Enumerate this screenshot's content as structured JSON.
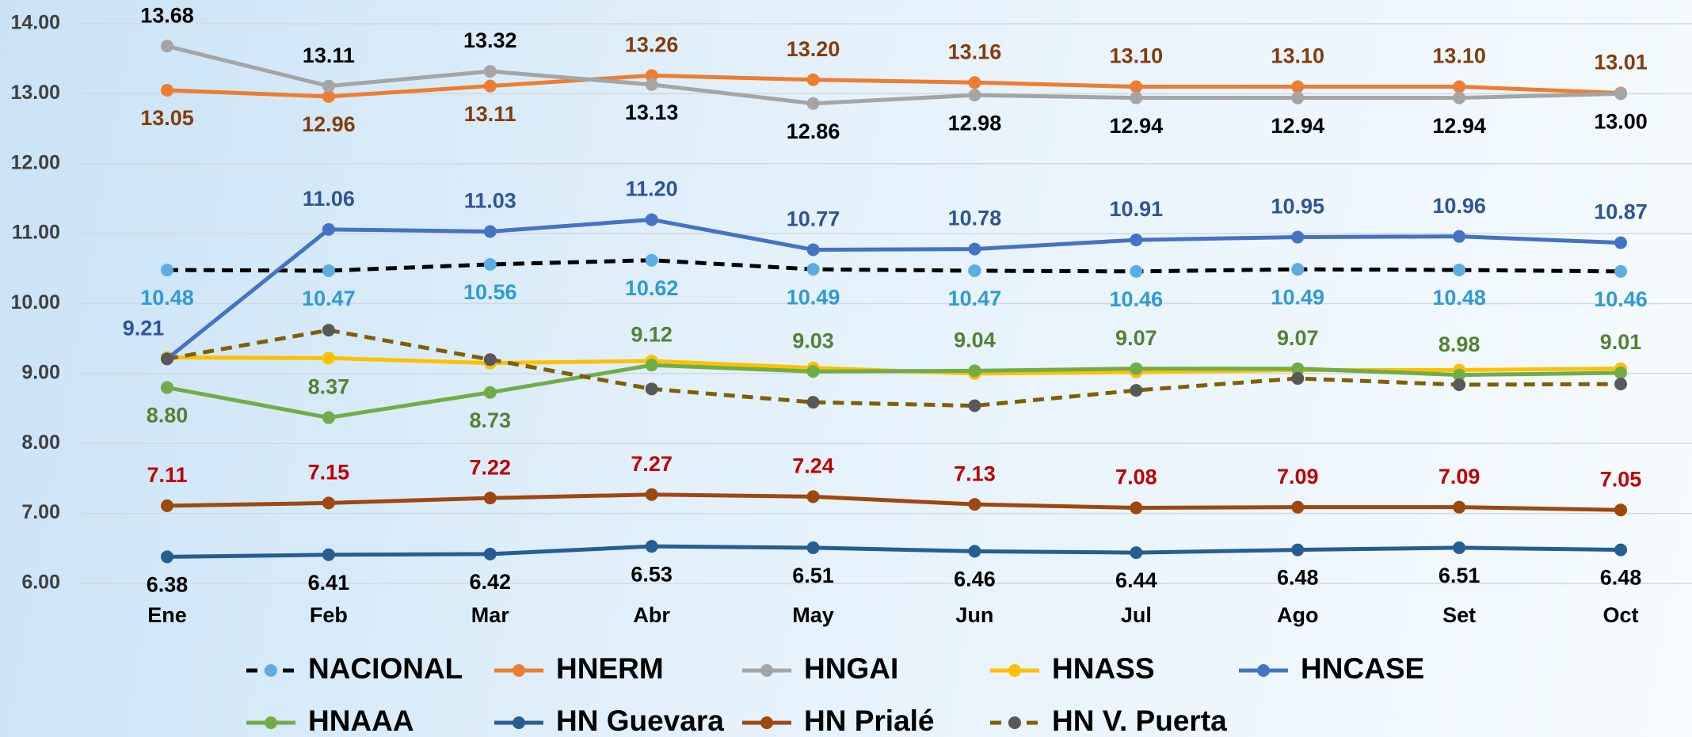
{
  "chart_data": {
    "type": "line",
    "categories": [
      "Ene",
      "Feb",
      "Mar",
      "Abr",
      "May",
      "Jun",
      "Jul",
      "Ago",
      "Set",
      "Oct"
    ],
    "ylim": [
      6,
      14
    ],
    "yticks": [
      {
        "value": 6,
        "label": "6.00"
      },
      {
        "value": 7,
        "label": "7.00"
      },
      {
        "value": 8,
        "label": "8.00"
      },
      {
        "value": 9,
        "label": "9.00"
      },
      {
        "value": 10,
        "label": "10.00"
      },
      {
        "value": 11,
        "label": "11.00"
      },
      {
        "value": 12,
        "label": "12.00"
      },
      {
        "value": 13,
        "label": "13.00"
      },
      {
        "value": 14,
        "label": "14.00"
      }
    ],
    "grid": true,
    "legend": "bottom",
    "series": [
      {
        "name": "NACIONAL",
        "color": "#000000",
        "marker_color": "#5aaee0",
        "label_color": "#2e9bd6",
        "dashed": true,
        "values": [
          10.48,
          10.47,
          10.56,
          10.62,
          10.49,
          10.47,
          10.46,
          10.49,
          10.48,
          10.46
        ],
        "value_labels": [
          "10.48",
          "10.47",
          "10.56",
          "10.62",
          "10.49",
          "10.47",
          "10.46",
          "10.49",
          "10.48",
          "10.46"
        ]
      },
      {
        "name": "HNERM",
        "color": "#ed7d31",
        "marker_color": "#ed7d31",
        "label_color": "#843c0c",
        "dashed": false,
        "values": [
          13.05,
          12.96,
          13.11,
          13.26,
          13.2,
          13.16,
          13.1,
          13.1,
          13.1,
          13.01
        ],
        "value_labels": [
          "13.05",
          "12.96",
          "13.11",
          "13.26",
          "13.20",
          "13.16",
          "13.10",
          "13.10",
          "13.10",
          "13.01"
        ]
      },
      {
        "name": "HNGAI",
        "color": "#a5a5a5",
        "marker_color": "#a5a5a5",
        "label_color": "#000000",
        "dashed": false,
        "values": [
          13.68,
          13.11,
          13.32,
          13.13,
          12.86,
          12.98,
          12.94,
          12.94,
          12.94,
          13.0
        ],
        "value_labels": [
          "13.68",
          "13.11",
          "13.32",
          "13.13",
          "12.86",
          "12.98",
          "12.94",
          "12.94",
          "12.94",
          "13.00"
        ]
      },
      {
        "name": "HNASS",
        "color": "#ffc000",
        "marker_color": "#ffc000",
        "dashed": false,
        "values": [
          9.23,
          9.22,
          9.15,
          9.18,
          9.08,
          9.0,
          9.02,
          9.05,
          9.05,
          9.07
        ]
      },
      {
        "name": "HNCASE",
        "color": "#4472c4",
        "marker_color": "#4472c4",
        "label_color": "#2f5597",
        "dashed": false,
        "values": [
          9.21,
          11.06,
          11.03,
          11.2,
          10.77,
          10.78,
          10.91,
          10.95,
          10.96,
          10.87
        ],
        "value_labels": [
          "9.21",
          "11.06",
          "11.03",
          "11.20",
          "10.77",
          "10.78",
          "10.91",
          "10.95",
          "10.96",
          "10.87"
        ]
      },
      {
        "name": "HNAAA",
        "color": "#70ad47",
        "marker_color": "#70ad47",
        "label_color": "#548235",
        "dashed": false,
        "values": [
          8.8,
          8.37,
          8.73,
          9.12,
          9.03,
          9.04,
          9.07,
          9.07,
          8.98,
          9.01
        ],
        "value_labels": [
          "8.80",
          "8.37",
          "8.73",
          "9.12",
          "9.03",
          "9.04",
          "9.07",
          "9.07",
          "8.98",
          "9.01"
        ]
      },
      {
        "name": "HN Guevara",
        "color": "#255e91",
        "marker_color": "#255e91",
        "label_color": "#000000",
        "dashed": false,
        "values": [
          6.38,
          6.41,
          6.42,
          6.53,
          6.51,
          6.46,
          6.44,
          6.48,
          6.51,
          6.48
        ],
        "value_labels": [
          "6.38",
          "6.41",
          "6.42",
          "6.53",
          "6.51",
          "6.46",
          "6.44",
          "6.48",
          "6.51",
          "6.48"
        ]
      },
      {
        "name": "HN Prialé",
        "color": "#9e480e",
        "marker_color": "#9e480e",
        "label_color": "#c00000",
        "dashed": false,
        "values": [
          7.11,
          7.15,
          7.22,
          7.27,
          7.24,
          7.13,
          7.08,
          7.09,
          7.09,
          7.05
        ],
        "value_labels": [
          "7.11",
          "7.15",
          "7.22",
          "7.27",
          "7.24",
          "7.13",
          "7.08",
          "7.09",
          "7.09",
          "7.05"
        ]
      },
      {
        "name": "HN V. Puerta",
        "color": "#7f6000",
        "marker_color": "#595959",
        "dashed": true,
        "values": [
          9.21,
          9.62,
          9.2,
          8.78,
          8.59,
          8.54,
          8.76,
          8.93,
          8.84,
          8.85
        ]
      }
    ]
  }
}
